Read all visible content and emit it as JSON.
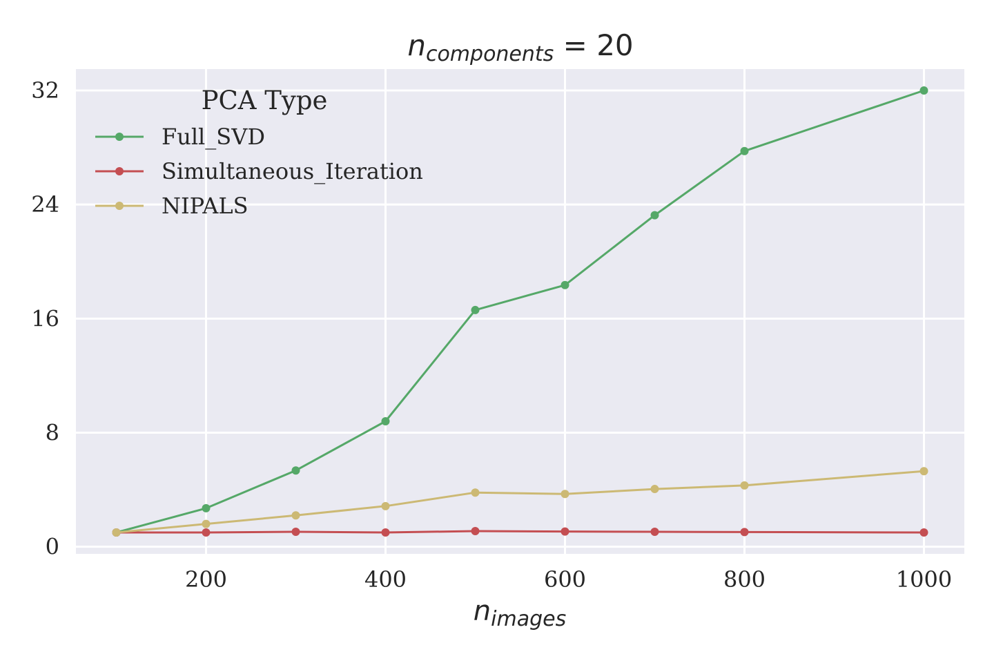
{
  "chart_data": {
    "type": "line",
    "title": {
      "base": "n",
      "sub": "components",
      "suffix": " = 20"
    },
    "xlabel": {
      "base": "n",
      "sub": "images"
    },
    "ylabel": "",
    "x": [
      100,
      200,
      300,
      400,
      500,
      600,
      700,
      800,
      1000
    ],
    "xlim": [
      55,
      1045
    ],
    "ylim": [
      -0.5,
      33.5
    ],
    "xticks": [
      200,
      400,
      600,
      800,
      1000
    ],
    "yticks": [
      0,
      8,
      16,
      24,
      32
    ],
    "grid": true,
    "background": "#eaeaf2",
    "legend": {
      "title": "PCA Type",
      "placement": "upper-left"
    },
    "series": [
      {
        "name": "Full_SVD",
        "color": "#55a868",
        "values": [
          1.0,
          2.7,
          5.35,
          8.8,
          16.6,
          18.35,
          23.25,
          27.75,
          32.0
        ]
      },
      {
        "name": "Simultaneous_Iteration",
        "color": "#c44e52",
        "values": [
          1.0,
          1.0,
          1.05,
          1.0,
          1.1,
          1.07,
          1.05,
          1.03,
          1.0
        ]
      },
      {
        "name": "NIPALS",
        "color": "#ccb974",
        "values": [
          1.0,
          1.6,
          2.2,
          2.85,
          3.8,
          3.7,
          4.05,
          4.3,
          5.3
        ]
      }
    ]
  }
}
